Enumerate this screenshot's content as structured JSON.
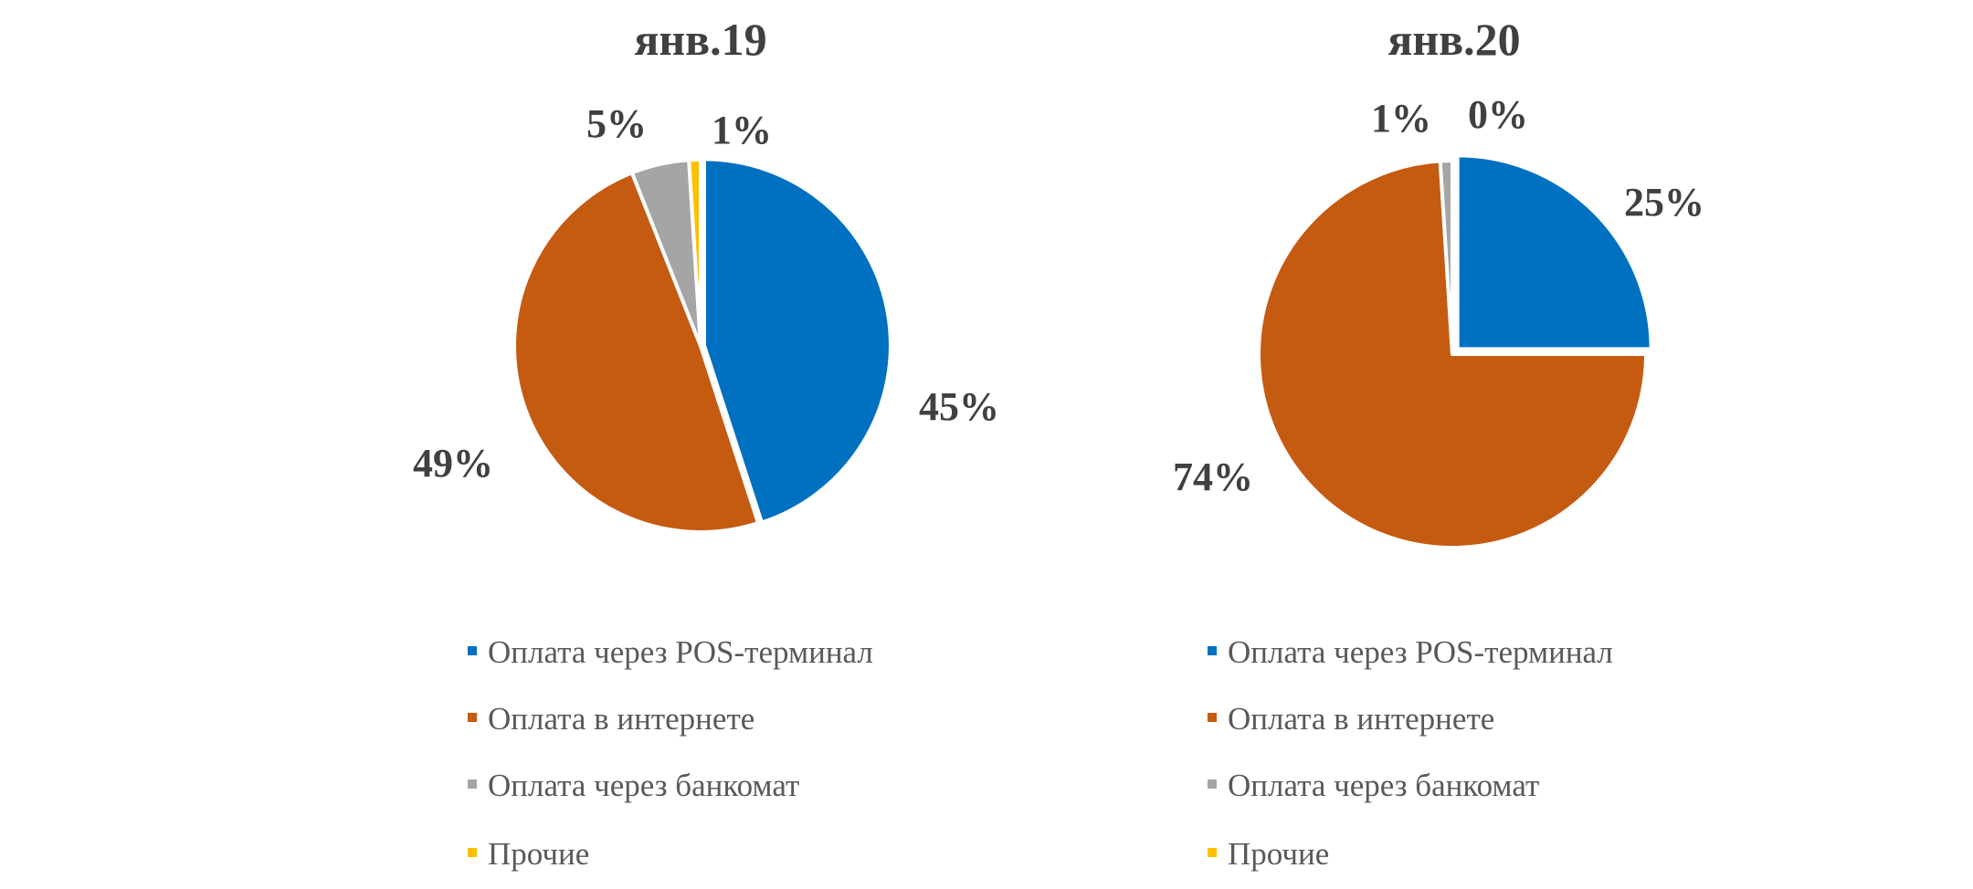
{
  "chart_data": [
    {
      "type": "pie",
      "title": "янв.19",
      "categories": [
        "Оплата через POS-терминал",
        "Оплата в интернете",
        "Оплата через банкомат",
        "Прочие"
      ],
      "values": [
        45,
        49,
        5,
        1
      ],
      "data_labels": [
        "45%",
        "49%",
        "5%",
        "1%"
      ],
      "colors": [
        "#0070C0",
        "#C55A11",
        "#A5A5A5",
        "#FFC000"
      ],
      "legend": "bottom"
    },
    {
      "type": "pie",
      "title": "янв.20",
      "categories": [
        "Оплата через POS-терминал",
        "Оплата в интернете",
        "Оплата через банкомат",
        "Прочие"
      ],
      "values": [
        25,
        74,
        1,
        0
      ],
      "data_labels": [
        "25%",
        "74%",
        "1%",
        "0%"
      ],
      "colors": [
        "#0070C0",
        "#C55A11",
        "#A5A5A5",
        "#FFC000"
      ],
      "legend": "bottom"
    }
  ]
}
